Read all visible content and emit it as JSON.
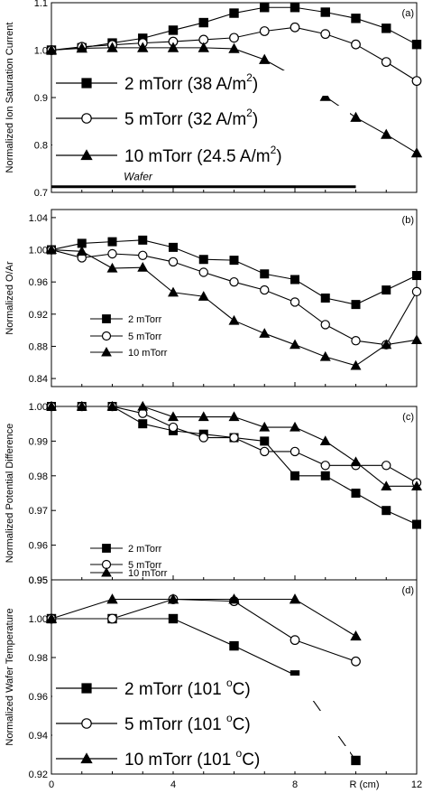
{
  "chart_data": [
    {
      "type": "line",
      "panel_label": "(a)",
      "ylabel": "Normalized Ion Saturation Current",
      "ylim": [
        0.7,
        1.1
      ],
      "yticks": [
        0.7,
        0.8,
        0.9,
        1.0,
        1.1
      ],
      "ytick_labels": [
        "0.7",
        "0.8",
        "0.9",
        "1.0",
        "1.1"
      ],
      "xlim": [
        0,
        12
      ],
      "legend_position": "left",
      "legend_style": "large",
      "annotation": {
        "text": "Wafer",
        "y": 0.712,
        "x_range": [
          0,
          10
        ]
      },
      "series": [
        {
          "name": "2 mTorr (38 A/m",
          "sup": "2",
          "name_end": ")",
          "marker": "square",
          "x": [
            0,
            1,
            2,
            3,
            4,
            5,
            6,
            7,
            8,
            9,
            10,
            11,
            12
          ],
          "y": [
            1.0,
            1.005,
            1.015,
            1.025,
            1.042,
            1.058,
            1.078,
            1.09,
            1.09,
            1.08,
            1.067,
            1.046,
            1.012
          ]
        },
        {
          "name": "5 mTorr (32 A/m",
          "sup": "2",
          "name_end": ")",
          "marker": "circle",
          "x": [
            0,
            1,
            2,
            3,
            4,
            5,
            6,
            7,
            8,
            9,
            10,
            11,
            12
          ],
          "y": [
            1.0,
            1.007,
            1.011,
            1.015,
            1.018,
            1.022,
            1.026,
            1.04,
            1.048,
            1.034,
            1.012,
            0.975,
            0.935
          ]
        },
        {
          "name": "10 mTorr (24.5 A/m",
          "sup": "2",
          "name_end": ")",
          "marker": "triangle",
          "x": [
            0,
            1,
            2,
            3,
            4,
            5,
            6,
            7,
            8,
            9,
            10,
            11,
            12
          ],
          "y": [
            1.0,
            1.004,
            1.005,
            1.005,
            1.005,
            1.005,
            1.003,
            0.98,
            0.944,
            0.902,
            0.858,
            0.822,
            0.783
          ]
        }
      ]
    },
    {
      "type": "line",
      "panel_label": "(b)",
      "ylabel": "Normalized O/Ar",
      "ylim": [
        0.83,
        1.05
      ],
      "yticks": [
        0.84,
        0.88,
        0.92,
        0.96,
        1.0,
        1.04
      ],
      "ytick_labels": [
        "0.84",
        "0.88",
        "0.92",
        "0.96",
        "1.00",
        "1.04"
      ],
      "xlim": [
        0,
        12
      ],
      "legend_position": "lower-left",
      "legend_style": "small",
      "series": [
        {
          "name": "2 mTorr",
          "marker": "square",
          "x": [
            0,
            1,
            2,
            3,
            4,
            5,
            6,
            7,
            8,
            9,
            10,
            11,
            12
          ],
          "y": [
            1.0,
            1.008,
            1.01,
            1.012,
            1.003,
            0.988,
            0.987,
            0.97,
            0.963,
            0.94,
            0.932,
            0.95,
            0.968
          ]
        },
        {
          "name": "5 mTorr",
          "marker": "circle",
          "x": [
            0,
            1,
            2,
            3,
            4,
            5,
            6,
            7,
            8,
            9,
            10,
            11,
            12
          ],
          "y": [
            1.0,
            0.99,
            0.995,
            0.993,
            0.985,
            0.972,
            0.96,
            0.95,
            0.935,
            0.907,
            0.887,
            0.882,
            0.948
          ]
        },
        {
          "name": "10 mTorr",
          "marker": "triangle",
          "x": [
            0,
            1,
            2,
            3,
            4,
            5,
            6,
            7,
            8,
            9,
            10,
            11,
            12
          ],
          "y": [
            1.0,
            0.998,
            0.977,
            0.978,
            0.947,
            0.942,
            0.912,
            0.896,
            0.882,
            0.867,
            0.856,
            0.882,
            0.888
          ]
        }
      ]
    },
    {
      "type": "line",
      "panel_label": "(c)",
      "ylabel": "Normalized Potential Difference",
      "ylim": [
        0.95,
        1.0
      ],
      "yticks": [
        0.95,
        0.96,
        0.97,
        0.98,
        0.99,
        1.0
      ],
      "ytick_labels": [
        "0.95",
        "0.96",
        "0.97",
        "0.98",
        "0.99",
        "1.00"
      ],
      "xlim": [
        0,
        12
      ],
      "legend_position": "lower-left",
      "legend_style": "small",
      "series": [
        {
          "name": "2 mTorr",
          "marker": "square",
          "x": [
            0,
            1,
            2,
            3,
            4,
            5,
            6,
            7,
            8,
            9,
            10,
            11,
            12
          ],
          "y": [
            1.0,
            1.0,
            1.0,
            0.995,
            0.993,
            0.992,
            0.991,
            0.99,
            0.98,
            0.98,
            0.975,
            0.97,
            0.966
          ]
        },
        {
          "name": "5 mTorr",
          "marker": "circle",
          "x": [
            0,
            1,
            2,
            3,
            4,
            5,
            6,
            7,
            8,
            9,
            10,
            11,
            12
          ],
          "y": [
            1.0,
            1.0,
            1.0,
            0.998,
            0.994,
            0.991,
            0.991,
            0.987,
            0.987,
            0.983,
            0.983,
            0.983,
            0.978
          ]
        },
        {
          "name": "10 mTorr",
          "marker": "triangle",
          "x": [
            0,
            1,
            2,
            3,
            4,
            5,
            6,
            7,
            8,
            9,
            10,
            11,
            12
          ],
          "y": [
            1.0,
            1.0,
            1.0,
            1.0,
            0.997,
            0.997,
            0.997,
            0.994,
            0.994,
            0.99,
            0.984,
            0.977,
            0.977
          ]
        }
      ]
    },
    {
      "type": "line",
      "panel_label": "(d)",
      "ylabel": "Normalized Wafer Temperature",
      "xlabel": "R (cm)",
      "ylim": [
        0.92,
        1.02
      ],
      "yticks": [
        0.92,
        0.94,
        0.96,
        0.98,
        1.0
      ],
      "ytick_labels": [
        "0.92",
        "0.94",
        "0.96",
        "0.98",
        "1.00"
      ],
      "top_ytick_label": "0.95",
      "xlim": [
        0,
        12
      ],
      "xticks": [
        0,
        4,
        8,
        12
      ],
      "xtick_labels": [
        "0",
        "4",
        "8",
        "12"
      ],
      "legend_position": "lower-left",
      "legend_style": "large",
      "series": [
        {
          "name": "2 mTorr (101 ",
          "sup": "o",
          "name_end": "C)",
          "marker": "square",
          "x": [
            0,
            2,
            4,
            6,
            8,
            10
          ],
          "y": [
            1.0,
            1.0,
            1.0,
            0.986,
            0.971,
            0.927
          ]
        },
        {
          "name": "5 mTorr (101 ",
          "sup": "o",
          "name_end": "C)",
          "marker": "circle",
          "x": [
            0,
            2,
            4,
            6,
            8,
            10
          ],
          "y": [
            1.0,
            1.0,
            1.01,
            1.009,
            0.989,
            0.978
          ]
        },
        {
          "name": "10 mTorr (101 ",
          "sup": "o",
          "name_end": "C)",
          "marker": "triangle",
          "x": [
            0,
            2,
            4,
            6,
            8,
            10
          ],
          "y": [
            1.0,
            1.01,
            1.01,
            1.01,
            1.01,
            0.991
          ]
        }
      ]
    }
  ]
}
